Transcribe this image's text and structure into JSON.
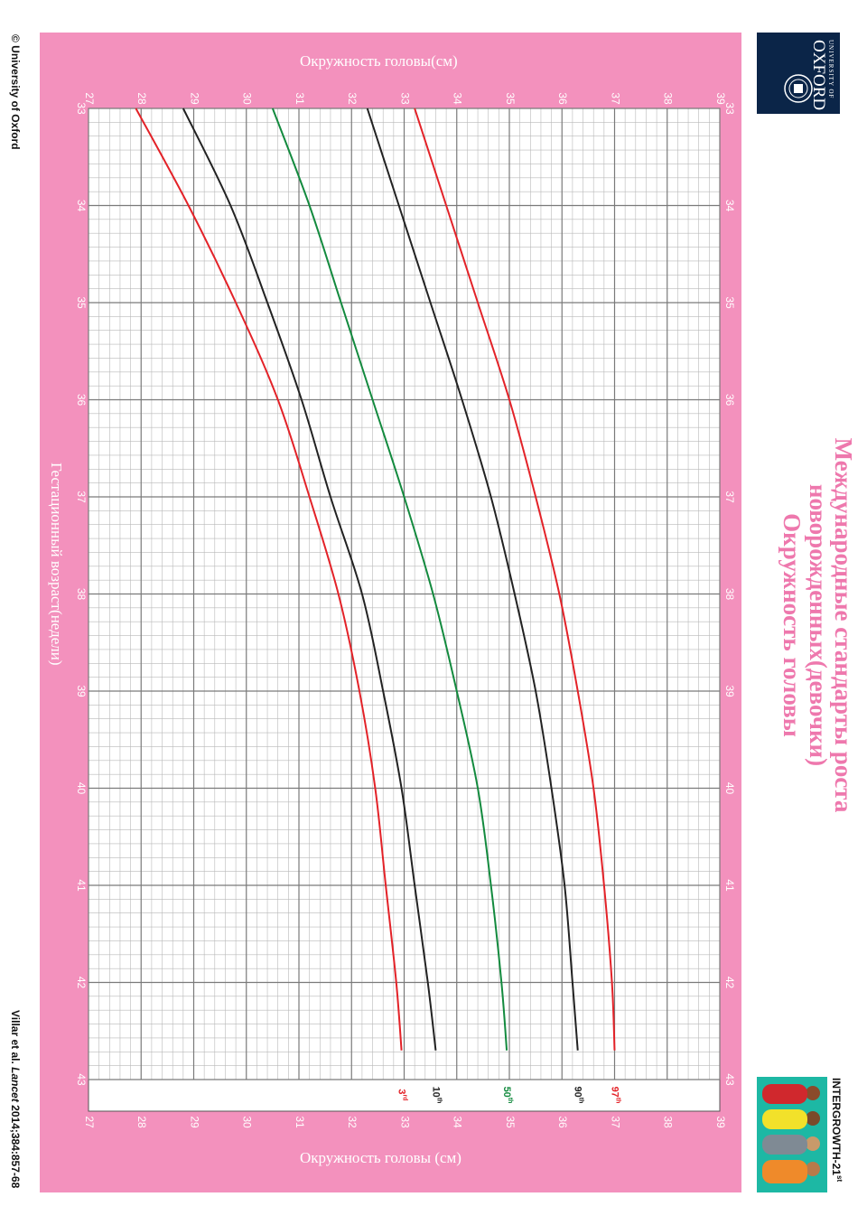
{
  "page": {
    "title_line1": "Международные стандарты роста",
    "title_line2": "новорожденных(девочки)",
    "title_line3": "Окружность головы",
    "copyright": "© University of Oxford",
    "citation_a": "Villar et al. ",
    "citation_journal": "Lancet",
    "citation_b": " 2014;384:857-68",
    "oxford_logo_small": "UNIVERSITY OF",
    "oxford_logo_big": "OXFORD",
    "intergrowth_text": "INTERGROWTH-21",
    "intergrowth_sup": "st"
  },
  "colors": {
    "pink": "#f391bd",
    "title_pink": "#ee78ad",
    "red": "#e32228",
    "green": "#138a3e",
    "black": "#222222",
    "oxford_blue": "#0b2548"
  },
  "chart_data": {
    "type": "line",
    "title": "Окружность головы",
    "xlabel": "Гестационный возраст(недели)",
    "ylabel": "Окружность головы(см)",
    "ylabel_bottom": "Окружность головы (см)",
    "x_ticks": [
      "33",
      "34",
      "35",
      "36",
      "37",
      "38",
      "39",
      "40",
      "41",
      "42",
      "43"
    ],
    "y_ticks": [
      "27",
      "28",
      "29",
      "30",
      "31",
      "32",
      "33",
      "34",
      "35",
      "36",
      "37",
      "38",
      "39"
    ],
    "xlim": [
      33,
      43
    ],
    "ylim": [
      27,
      39
    ],
    "grid": true,
    "x": [
      33,
      34,
      35,
      36,
      37,
      38,
      39,
      40,
      41,
      42,
      42.7
    ],
    "series": [
      {
        "name": "3rd",
        "label": "3",
        "label_sup": "rd",
        "color": "#e32228",
        "values": [
          27.9,
          28.9,
          29.8,
          30.6,
          31.2,
          31.75,
          32.15,
          32.45,
          32.65,
          32.85,
          32.95
        ]
      },
      {
        "name": "10th",
        "label": "10",
        "label_sup": "th",
        "color": "#222222",
        "values": [
          28.8,
          29.7,
          30.4,
          31.05,
          31.6,
          32.2,
          32.6,
          32.95,
          33.2,
          33.45,
          33.6
        ]
      },
      {
        "name": "50th",
        "label": "50",
        "label_sup": "th",
        "color": "#138a3e",
        "values": [
          30.5,
          31.2,
          31.8,
          32.4,
          33.0,
          33.55,
          34.0,
          34.4,
          34.65,
          34.85,
          34.95
        ]
      },
      {
        "name": "90th",
        "label": "90",
        "label_sup": "th",
        "color": "#222222",
        "values": [
          32.3,
          32.9,
          33.5,
          34.1,
          34.65,
          35.1,
          35.5,
          35.8,
          36.05,
          36.2,
          36.3
        ]
      },
      {
        "name": "97th",
        "label": "97",
        "label_sup": "th",
        "color": "#e32228",
        "values": [
          33.2,
          33.8,
          34.4,
          35.0,
          35.5,
          35.95,
          36.3,
          36.6,
          36.8,
          36.95,
          37.0
        ]
      }
    ]
  }
}
